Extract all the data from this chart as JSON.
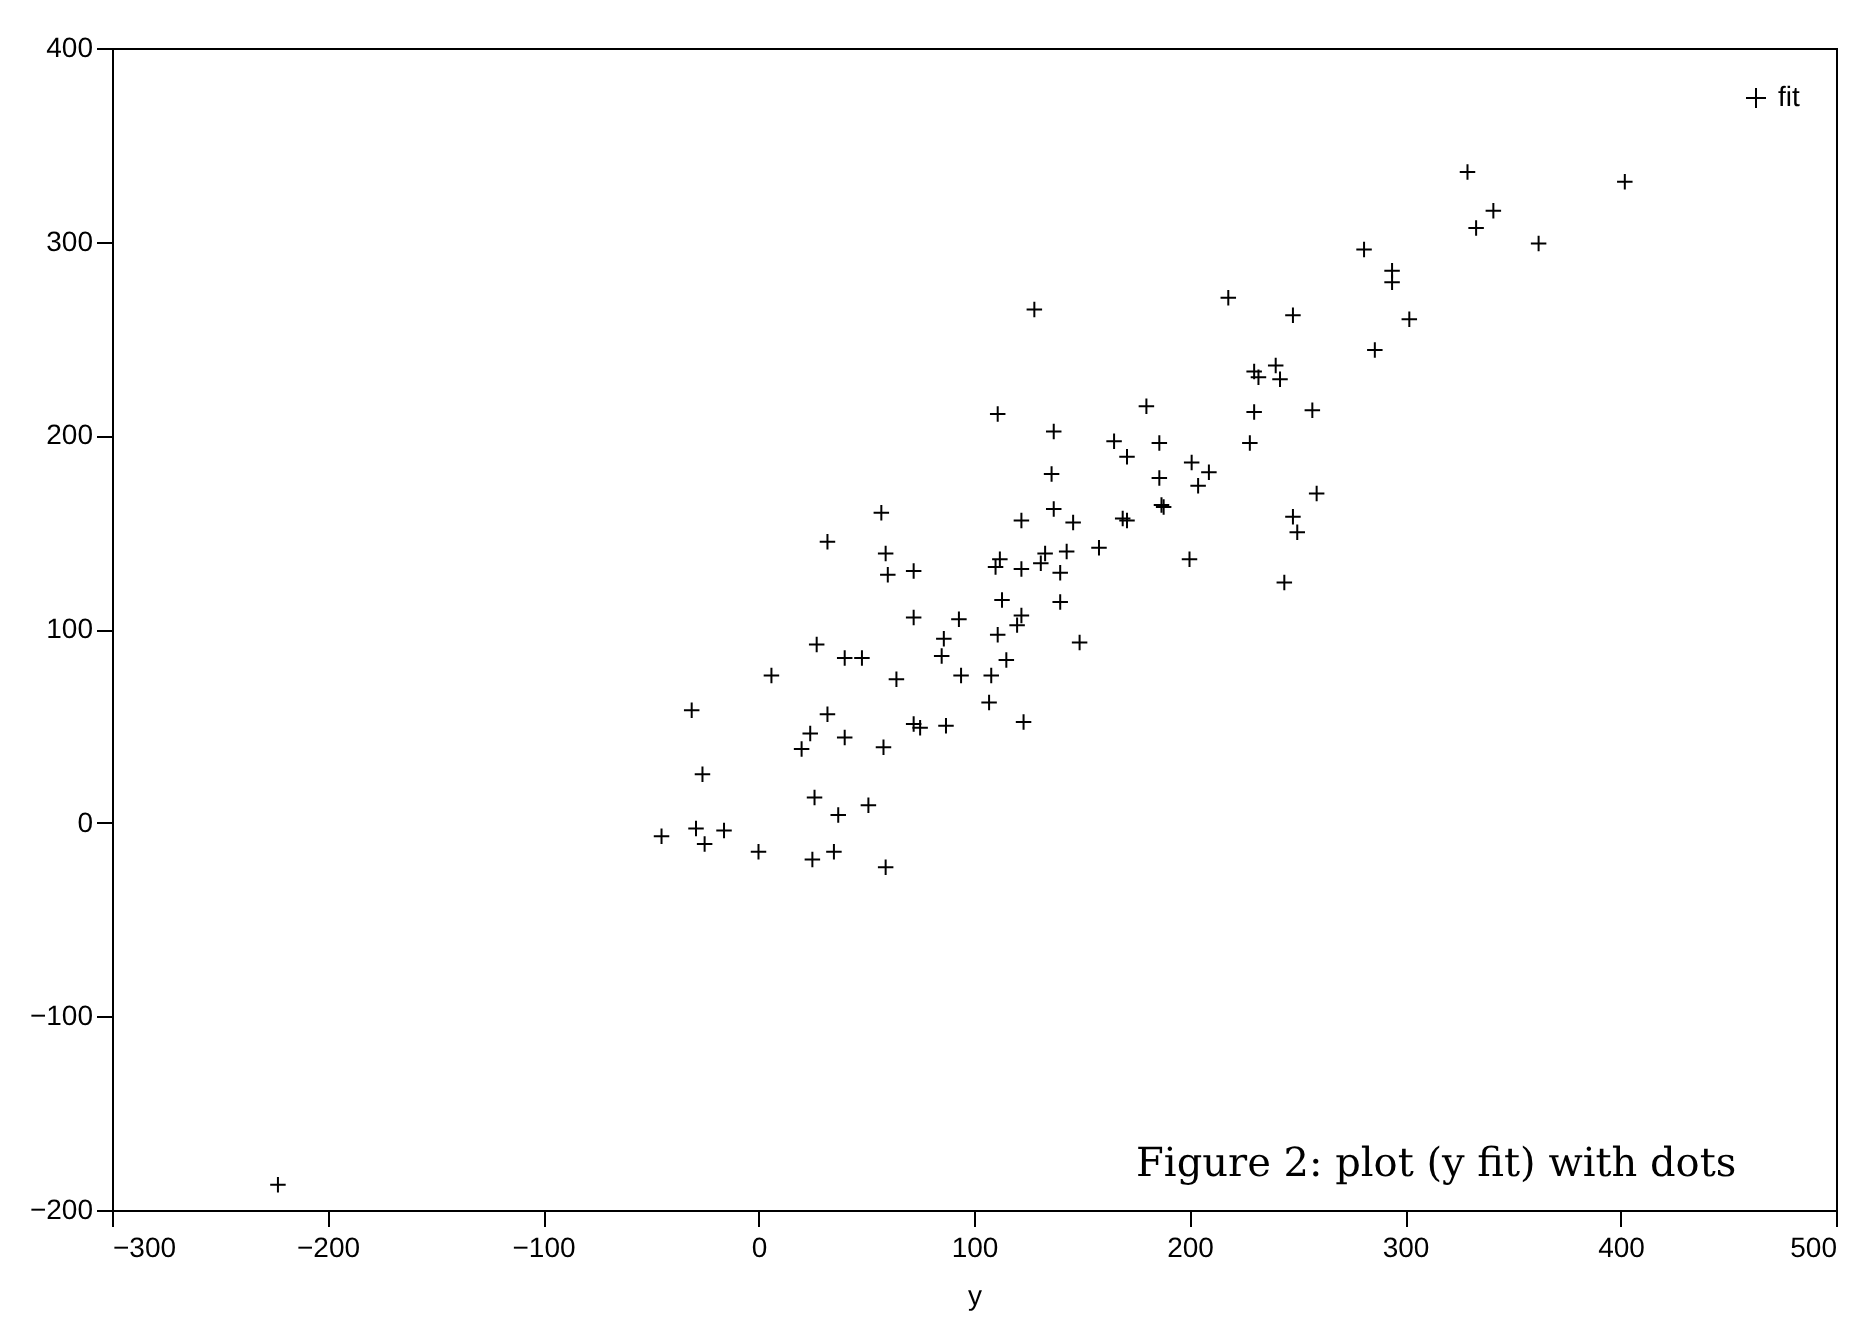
{
  "chart_data": {
    "type": "scatter",
    "xlabel": "y",
    "annotations": [
      "Figure 2: plot (y fit) with dots"
    ],
    "xlim": [
      -300,
      500
    ],
    "xticks": [
      -300,
      -200,
      -100,
      0,
      100,
      200,
      300,
      400,
      500
    ],
    "ylim": [
      -200,
      400
    ],
    "yticks": [
      -200,
      -100,
      0,
      100,
      200,
      300,
      400
    ],
    "grid": false,
    "legend": "top right",
    "marker": "cross",
    "series": [
      {
        "name": "fit",
        "color": "#000000",
        "x": [
          128,
          218,
          111,
          137,
          180,
          165,
          171,
          186,
          136,
          186,
          201,
          209,
          204,
          187,
          188,
          137,
          122,
          146,
          169,
          171,
          57,
          32,
          59,
          60,
          72,
          110,
          112,
          122,
          133,
          143,
          131,
          140,
          158,
          200,
          113,
          140,
          72,
          93,
          122,
          120,
          111,
          149,
          86,
          85,
          115,
          94,
          108,
          107,
          123,
          72,
          75,
          87,
          64,
          27,
          40,
          48,
          6,
          -31,
          32,
          24,
          20,
          40,
          58,
          -26,
          26,
          37,
          51,
          -45,
          -29,
          -25,
          -16,
          0,
          25,
          35,
          59,
          329,
          402,
          341,
          333,
          362,
          281,
          294,
          294,
          302,
          248,
          286,
          230,
          232,
          240,
          242,
          230,
          257,
          228,
          259,
          248,
          250,
          244,
          -223
        ],
        "values": [
          265,
          271,
          211,
          202,
          215,
          197,
          189,
          196,
          180,
          178,
          186,
          181,
          174,
          164,
          163,
          162,
          156,
          155,
          157,
          156,
          160,
          145,
          139,
          128,
          130,
          132,
          136,
          131,
          139,
          140,
          134,
          129,
          142,
          136,
          115,
          114,
          106,
          105,
          107,
          102,
          97,
          93,
          95,
          86,
          84,
          76,
          76,
          62,
          52,
          51,
          49,
          50,
          74,
          92,
          85,
          85,
          76,
          58,
          56,
          46,
          38,
          44,
          39,
          25,
          13,
          4,
          9,
          -7,
          -3,
          -11,
          -4,
          -15,
          -19,
          -15,
          -23,
          336,
          331,
          316,
          307,
          299,
          296,
          285,
          279,
          260,
          262,
          244,
          233,
          230,
          236,
          229,
          212,
          213,
          196,
          170,
          158,
          150,
          124,
          -187
        ]
      }
    ]
  }
}
